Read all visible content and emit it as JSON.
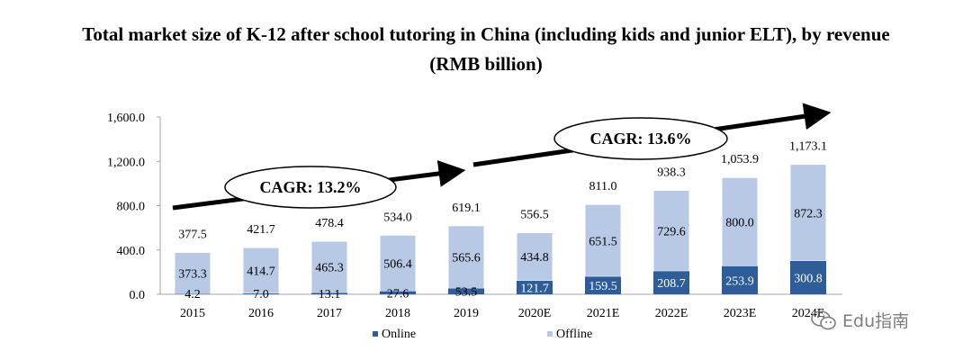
{
  "title_line1": "Total market size of K-12 after school tutoring in China (including kids and junior ELT), by revenue",
  "title_line2": "(RMB billion)",
  "watermark_text": "Edu指南",
  "watermark_icon": "wechat-icon",
  "colors": {
    "online": "#2e5d9a",
    "offline": "#b8c9e6",
    "text": "#000000"
  },
  "chart_data": {
    "type": "bar",
    "stacked": true,
    "categories": [
      "2015",
      "2016",
      "2017",
      "2018",
      "2019",
      "2020E",
      "2021E",
      "2022E",
      "2023E",
      "2024E"
    ],
    "series": [
      {
        "name": "Online",
        "values": [
          4.2,
          7.0,
          13.1,
          27.6,
          53.5,
          121.7,
          159.5,
          208.7,
          253.9,
          300.8
        ]
      },
      {
        "name": "Offline",
        "values": [
          373.3,
          414.7,
          465.3,
          506.4,
          565.6,
          434.8,
          651.5,
          729.6,
          800.0,
          872.3
        ]
      }
    ],
    "totals": [
      377.5,
      421.7,
      478.4,
      534.0,
      619.1,
      556.5,
      811.0,
      938.3,
      1053.9,
      1173.1
    ],
    "labels": {
      "online": [
        "4.2",
        "7.0",
        "13.1",
        "27.6",
        "53.5",
        "121.7",
        "159.5",
        "208.7",
        "253.9",
        "300.8"
      ],
      "offline": [
        "373.3",
        "414.7",
        "465.3",
        "506.4",
        "565.6",
        "434.8",
        "651.5",
        "729.6",
        "800.0",
        "872.3"
      ],
      "totals": [
        "377.5",
        "421.7",
        "478.4",
        "534.0",
        "619.1",
        "556.5",
        "811.0",
        "938.3",
        "1,053.9",
        "1,173.1"
      ]
    },
    "ylim": [
      0,
      1600
    ],
    "yticks": [
      "0.0",
      "400.0",
      "800.0",
      "1,200.0",
      "1,600.0"
    ],
    "grid": false,
    "legend": {
      "position": "bottom",
      "entries": [
        "Online",
        "Offline"
      ]
    },
    "annotations": [
      {
        "text": "CAGR: 13.2%",
        "from": "2015",
        "to": "2019"
      },
      {
        "text": "CAGR: 13.6%",
        "from": "2019",
        "to": "2024E"
      }
    ]
  }
}
